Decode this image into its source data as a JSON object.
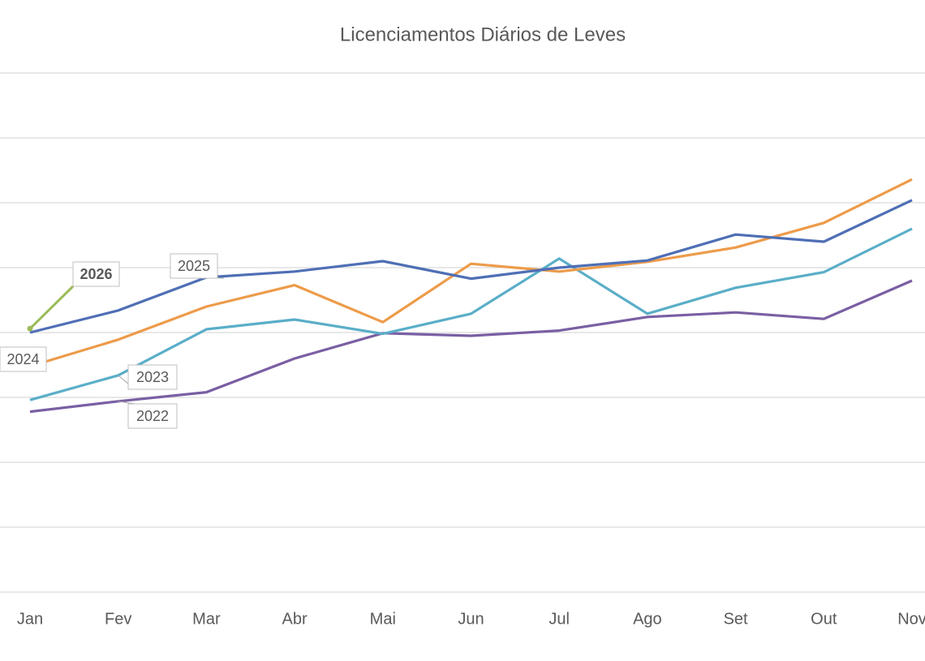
{
  "chart_data": {
    "type": "line",
    "title": "Licenciamentos Diários de Leves",
    "categories": [
      "Jan",
      "Fev",
      "Mar",
      "Abr",
      "Mai",
      "Jun",
      "Jul",
      "Ago",
      "Set",
      "Out",
      "Nov"
    ],
    "ylim": [
      0,
      8
    ],
    "yticks": [
      0,
      1,
      2,
      3,
      4,
      5,
      6,
      7,
      8
    ],
    "grid": true,
    "series": [
      {
        "name": "2022",
        "color": "#7a5fa3",
        "values": [
          2.78,
          2.94,
          3.08,
          3.6,
          3.99,
          3.95,
          4.03,
          4.24,
          4.31,
          4.21,
          4.8
        ]
      },
      {
        "name": "2023",
        "color": "#5aaec8",
        "values": [
          2.96,
          3.34,
          4.05,
          4.2,
          3.98,
          4.29,
          5.14,
          4.29,
          4.69,
          4.93,
          5.6
        ]
      },
      {
        "name": "2024",
        "color": "#ed9b4a",
        "values": [
          3.48,
          3.89,
          4.4,
          4.73,
          4.16,
          5.06,
          4.94,
          5.09,
          5.31,
          5.69,
          6.36
        ]
      },
      {
        "name": "2025",
        "color": "#4f6fb5",
        "values": [
          4.0,
          4.34,
          4.85,
          4.94,
          5.1,
          4.83,
          5.0,
          5.11,
          5.51,
          5.4,
          6.04
        ]
      },
      {
        "name": "2026",
        "color": "#9bbb59",
        "values": [
          4.06,
          null,
          null,
          null,
          null,
          null,
          null,
          null,
          null,
          null,
          null
        ]
      }
    ]
  }
}
